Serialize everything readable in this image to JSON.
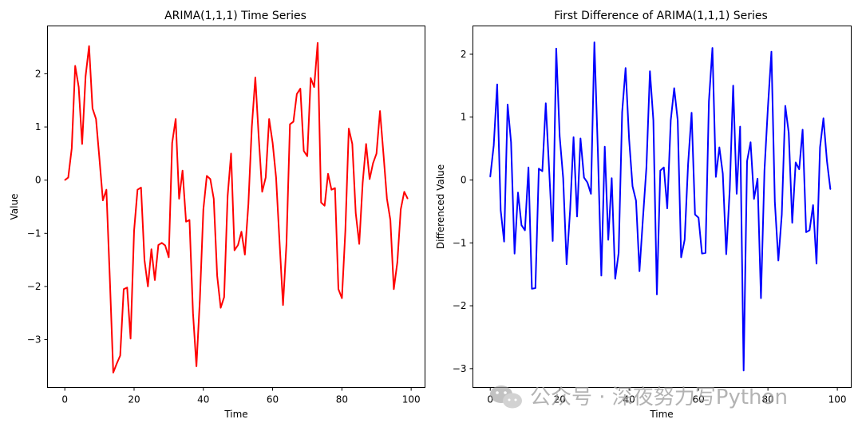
{
  "chart_data": [
    {
      "type": "line",
      "title": "ARIMA(1,1,1) Time Series",
      "xlabel": "Time",
      "ylabel": "Value",
      "color": "#ff0000",
      "xlim": [
        -5,
        104
      ],
      "ylim": [
        -3.9,
        2.9
      ],
      "xticks": [
        0,
        20,
        40,
        60,
        80,
        100
      ],
      "yticks": [
        -3,
        -2,
        -1,
        0,
        1,
        2
      ],
      "y": [
        0.0,
        0.05,
        0.6,
        2.15,
        1.75,
        0.68,
        1.95,
        2.52,
        1.35,
        1.15,
        0.4,
        -0.38,
        -0.18,
        -1.85,
        -3.62,
        -3.45,
        -3.3,
        -2.05,
        -2.02,
        -2.98,
        -0.95,
        -0.18,
        -0.14,
        -1.5,
        -2.0,
        -1.3,
        -1.88,
        -1.22,
        -1.18,
        -1.23,
        -1.45,
        0.7,
        1.15,
        -0.35,
        0.18,
        -0.78,
        -0.75,
        -2.5,
        -3.5,
        -2.25,
        -0.55,
        0.08,
        0.02,
        -0.35,
        -1.8,
        -2.4,
        -2.2,
        -0.3,
        0.5,
        -1.32,
        -1.22,
        -0.97,
        -1.4,
        -0.45,
        1.0,
        1.93,
        0.8,
        -0.22,
        0.05,
        1.15,
        0.7,
        0.05,
        -1.15,
        -2.35,
        -1.2,
        1.05,
        1.1,
        1.62,
        1.72,
        0.55,
        0.45,
        1.92,
        1.75,
        2.58,
        -0.42,
        -0.48,
        0.12,
        -0.18,
        -0.15,
        -2.05,
        -2.22,
        -0.95,
        0.97,
        0.68,
        -0.62,
        -1.2,
        -0.05,
        0.68,
        0.02,
        0.32,
        0.5,
        1.3,
        0.5,
        -0.35,
        -0.75,
        -2.05,
        -1.55,
        -0.55,
        -0.22,
        -0.35
      ]
    },
    {
      "type": "line",
      "title": "First Difference of ARIMA(1,1,1) Series",
      "xlabel": "Time",
      "ylabel": "Differenced Value",
      "color": "#0000ff",
      "xlim": [
        -5,
        104
      ],
      "ylim": [
        -3.3,
        2.45
      ],
      "xticks": [
        0,
        20,
        40,
        60,
        80,
        100
      ],
      "yticks": [
        -3,
        -2,
        -1,
        0,
        1,
        2
      ],
      "y": [
        0.05,
        0.55,
        1.52,
        -0.48,
        -0.98,
        1.2,
        0.6,
        -1.17,
        -0.2,
        -0.72,
        -0.8,
        0.2,
        -1.73,
        -1.72,
        0.18,
        0.14,
        1.22,
        0.12,
        -0.97,
        2.09,
        0.7,
        0.03,
        -1.34,
        -0.48,
        0.68,
        -0.58,
        0.66,
        0.04,
        -0.04,
        -0.22,
        2.19,
        0.45,
        -1.52,
        0.53,
        -0.95,
        0.03,
        -1.57,
        -1.16,
        1.08,
        1.78,
        0.65,
        -0.1,
        -0.33,
        -1.45,
        -0.6,
        0.2,
        1.73,
        0.95,
        -1.82,
        0.15,
        0.2,
        -0.45,
        0.95,
        1.46,
        0.95,
        -1.23,
        -0.95,
        0.25,
        1.07,
        -0.55,
        -0.6,
        -1.17,
        -1.16,
        1.25,
        2.1,
        0.05,
        0.52,
        0.1,
        -1.18,
        -0.15,
        1.5,
        -0.22,
        0.85,
        -3.03,
        0.3,
        0.6,
        -0.3,
        0.02,
        -1.88,
        0.15,
        1.15,
        2.04,
        -0.35,
        -1.28,
        -0.55,
        1.18,
        0.75,
        -0.68,
        0.28,
        0.17,
        0.8,
        -0.83,
        -0.8,
        -0.4,
        -1.33,
        0.52,
        0.98,
        0.3,
        -0.15
      ]
    }
  ],
  "watermark": {
    "text": "公众号 · 深夜努力写Python"
  }
}
